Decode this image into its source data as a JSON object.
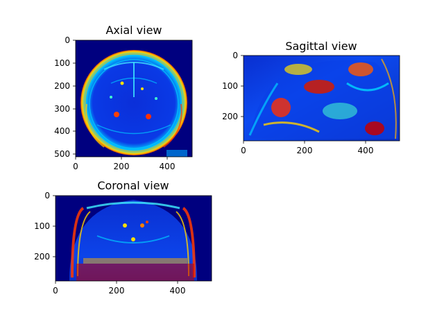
{
  "figure": {
    "panels": [
      {
        "title": "Axial view",
        "x_ticks": [
          "0",
          "200",
          "400"
        ],
        "y_ticks": [
          "0",
          "100",
          "200",
          "300",
          "400",
          "500"
        ],
        "x_range": [
          0,
          512
        ],
        "y_range": [
          0,
          512
        ],
        "image": "axial MRI slice, jet colormap"
      },
      {
        "title": "Sagittal view",
        "x_ticks": [
          "0",
          "200",
          "400"
        ],
        "y_ticks": [
          "0",
          "100",
          "200"
        ],
        "x_range": [
          0,
          512
        ],
        "y_range": [
          0,
          280
        ],
        "image": "sagittal MRI slice, jet colormap"
      },
      {
        "title": "Coronal view",
        "x_ticks": [
          "0",
          "200",
          "400"
        ],
        "y_ticks": [
          "0",
          "100",
          "200"
        ],
        "x_range": [
          0,
          512
        ],
        "y_range": [
          0,
          280
        ],
        "image": "coronal MRI slice, jet colormap"
      }
    ],
    "colormap": "jet",
    "colors": {
      "jet_low": "#00007f",
      "jet_mid": "#00bfff",
      "jet_high": "#ff2000"
    }
  }
}
